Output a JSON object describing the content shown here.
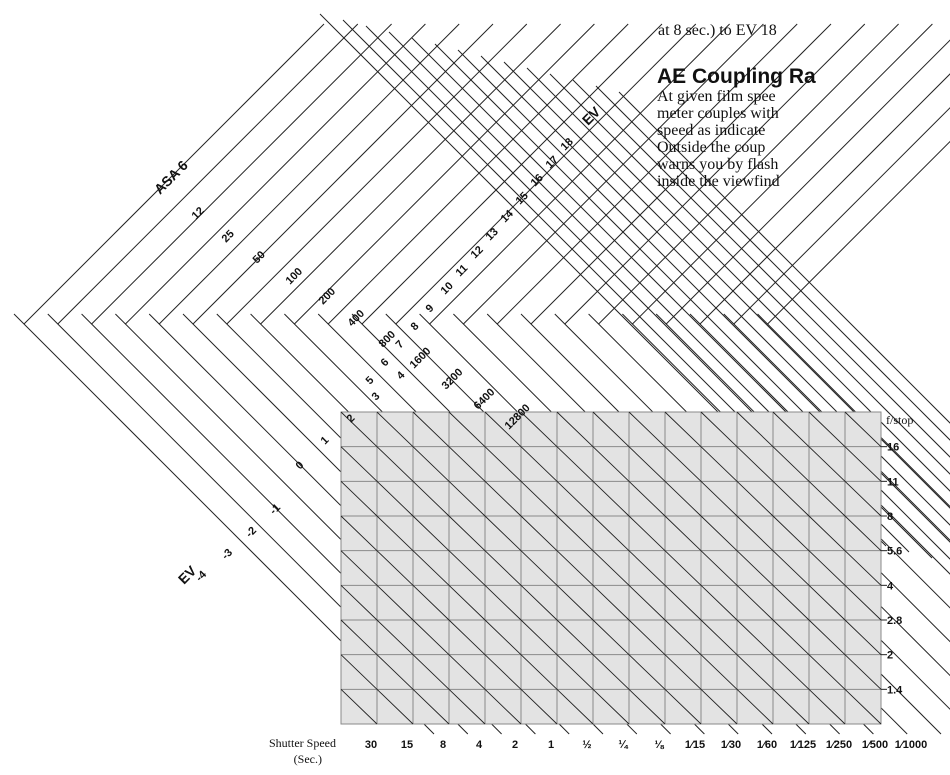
{
  "page_text": {
    "top_line": "at 8 sec.) to EV 18",
    "heading": "AE Coupling Ra",
    "paragraph_lines": [
      "At given film spee",
      "meter couples with",
      "speed as indicate",
      "Outside the coup",
      "warns you by flash",
      "inside the viewfind"
    ]
  },
  "diagram": {
    "asa_label": "ASA",
    "asa_values": [
      "6",
      "12",
      "25",
      "50",
      "100",
      "200",
      "400",
      "800",
      "1600",
      "3200",
      "6400",
      "12800"
    ],
    "ev_top_label": "EV",
    "ev_top_values": [
      "5",
      "6",
      "7",
      "8",
      "9",
      "10",
      "11",
      "12",
      "13",
      "14",
      "15",
      "16",
      "17",
      "18"
    ],
    "ev_bottom_label": "EV",
    "ev_bottom_values": [
      "-4",
      "-3",
      "-2",
      "-1",
      "0",
      "1",
      "2",
      "3",
      "4"
    ],
    "fstop_label": "f/stop",
    "fstop_values": [
      "16",
      "11",
      "8",
      "5.6",
      "4",
      "2.8",
      "2",
      "1.4"
    ],
    "shutter_label": "Shutter Speed",
    "shutter_sublabel": "(Sec.)",
    "shutter_values": [
      "30",
      "15",
      "8",
      "4",
      "2",
      "1",
      "½",
      "¼",
      "⅛",
      "1⁄15",
      "1⁄30",
      "1⁄60",
      "1⁄125",
      "1⁄250",
      "1⁄500",
      "1⁄1000"
    ]
  }
}
